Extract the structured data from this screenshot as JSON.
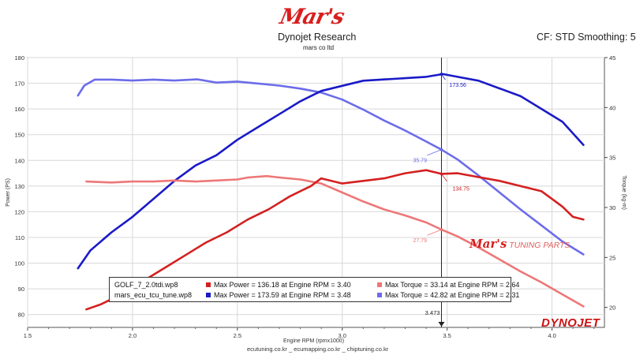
{
  "header": {
    "brand": "Mar's",
    "title": "Dynojet Research",
    "subtitle": "mars co ltd",
    "correction": "CF: STD Smoothing: 5"
  },
  "footer": "ecutuning.co.kr _ ecumapping.co.kr _ chiptuning.co.kr",
  "logo_text": "DYNOJET",
  "watermark_text": "TUNING PARTS",
  "cursor": {
    "rpm_label": "3.473"
  },
  "legend": {
    "rows": [
      {
        "file": "GOLF_7_2.0tdi.wp8",
        "power": "Max Power = 136.18 at Engine RPM = 3.40",
        "torque": "Max Torque = 33.14 at Engine RPM = 2.64"
      },
      {
        "file": "mars_ecu_tcu_tune.wp8",
        "power": "Max Power = 173.59 at Engine RPM = 3.48",
        "torque": "Max Torque = 42.82 at Engine RPM = 2.31"
      }
    ]
  },
  "colors": {
    "stock_power": "#d42020",
    "stock_torque": "#ee7777",
    "tuned_power": "#1a1ac8",
    "tuned_torque": "#6c6cea"
  },
  "chart_data": {
    "type": "line",
    "xlabel": "Engine RPM (rpmx1000)",
    "ylabel": "Power (PS)",
    "y2label": "Torque (kg-m)",
    "xlim": [
      1.5,
      4.25
    ],
    "ylim": [
      75,
      180
    ],
    "y2lim": [
      18,
      45
    ],
    "xticks": [
      1.5,
      2.0,
      2.5,
      3.0,
      3.5,
      4.0
    ],
    "xtick_labels": [
      "1.5",
      "2.0",
      "2.5",
      "3.0",
      "3.5",
      "4.0"
    ],
    "yticks": [
      80,
      90,
      100,
      110,
      120,
      130,
      140,
      150,
      160,
      170,
      180
    ],
    "y2ticks": [
      20,
      25,
      30,
      35,
      40,
      45
    ],
    "grid": true,
    "annotations": [
      {
        "series": "tuned_power",
        "x": 3.473,
        "y": 173.56,
        "text": "173.56",
        "axis": "left"
      },
      {
        "series": "stock_power",
        "x": 3.473,
        "y": 134.75,
        "text": "134.75",
        "axis": "left"
      },
      {
        "series": "tuned_torque",
        "x": 3.473,
        "y": 35.79,
        "text": "35.79",
        "axis": "right"
      },
      {
        "series": "stock_torque",
        "x": 3.473,
        "y": 27.79,
        "text": "27.79",
        "axis": "right"
      }
    ],
    "series": [
      {
        "key": "tuned_torque",
        "axis": "right",
        "x": [
          1.74,
          1.77,
          1.82,
          1.9,
          2.0,
          2.1,
          2.2,
          2.31,
          2.4,
          2.5,
          2.6,
          2.7,
          2.8,
          2.9,
          3.0,
          3.1,
          3.2,
          3.3,
          3.4,
          3.473,
          3.55,
          3.65,
          3.75,
          3.85,
          3.95,
          4.05,
          4.15
        ],
        "y": [
          41.2,
          42.2,
          42.8,
          42.8,
          42.7,
          42.8,
          42.7,
          42.82,
          42.5,
          42.6,
          42.4,
          42.2,
          41.9,
          41.5,
          40.8,
          39.8,
          38.7,
          37.7,
          36.6,
          35.79,
          34.8,
          33.2,
          31.5,
          29.8,
          28.2,
          26.6,
          25.3
        ]
      },
      {
        "key": "tuned_power",
        "axis": "left",
        "x": [
          1.74,
          1.8,
          1.9,
          2.0,
          2.1,
          2.2,
          2.3,
          2.4,
          2.5,
          2.6,
          2.7,
          2.8,
          2.9,
          3.0,
          3.1,
          3.2,
          3.3,
          3.4,
          3.48,
          3.55,
          3.65,
          3.75,
          3.85,
          3.95,
          4.05,
          4.15
        ],
        "y": [
          98,
          105,
          112,
          118,
          125,
          132,
          138,
          142,
          148,
          153,
          158,
          163,
          167,
          169,
          171,
          171.5,
          172,
          172.5,
          173.59,
          172.5,
          171,
          168,
          165,
          160,
          155,
          146
        ]
      },
      {
        "key": "stock_torque",
        "axis": "right",
        "x": [
          1.78,
          1.9,
          2.0,
          2.1,
          2.2,
          2.3,
          2.4,
          2.5,
          2.55,
          2.64,
          2.7,
          2.8,
          2.9,
          3.0,
          3.1,
          3.2,
          3.3,
          3.4,
          3.473,
          3.55,
          3.65,
          3.75,
          3.85,
          3.95,
          4.05,
          4.15
        ],
        "y": [
          32.6,
          32.5,
          32.6,
          32.6,
          32.7,
          32.6,
          32.7,
          32.8,
          33.0,
          33.14,
          33.0,
          32.8,
          32.4,
          31.5,
          30.6,
          29.8,
          29.2,
          28.5,
          27.79,
          27.1,
          26.0,
          24.8,
          23.6,
          22.5,
          21.3,
          20.1
        ]
      },
      {
        "key": "stock_power",
        "axis": "left",
        "x": [
          1.78,
          1.85,
          1.95,
          2.05,
          2.15,
          2.25,
          2.35,
          2.45,
          2.55,
          2.65,
          2.75,
          2.85,
          2.9,
          3.0,
          3.1,
          3.2,
          3.3,
          3.4,
          3.473,
          3.55,
          3.65,
          3.75,
          3.85,
          3.95,
          4.05,
          4.1,
          4.15
        ],
        "y": [
          82,
          84,
          88,
          93,
          98,
          103,
          108,
          112,
          117,
          121,
          126,
          130,
          133,
          131,
          132,
          133,
          135,
          136.18,
          134.75,
          135,
          133.5,
          132,
          130,
          128,
          122,
          118,
          117
        ]
      }
    ]
  }
}
